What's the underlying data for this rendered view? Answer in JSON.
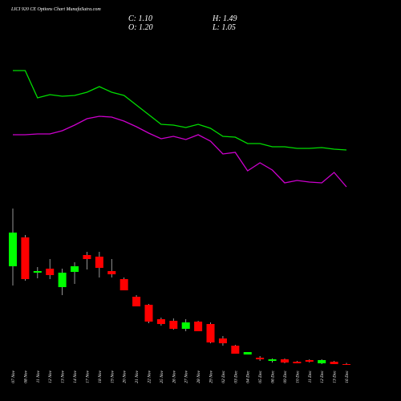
{
  "chart_data": {
    "type": "candlestick",
    "title": "LICI 920 CE Options Chart MunafaSutra.com",
    "header": [
      "C: 1.10",
      "O: 1.20",
      "H: 1.49",
      "L: 1.05"
    ],
    "categories": [
      "07 Nov",
      "08 Nov",
      "11 Nov",
      "12 Nov",
      "13 Nov",
      "14 Nov",
      "17 Nov",
      "18 Nov",
      "19 Nov",
      "20 Nov",
      "21 Nov",
      "22 Nov",
      "25 Nov",
      "26 Nov",
      "27 Nov",
      "28 Nov",
      "29 Nov",
      "02 Dec",
      "03 Dec",
      "04 Dec",
      "05 Dec",
      "06 Dec",
      "09 Dec",
      "10 Dec",
      "11 Dec",
      "12 Dec",
      "13 Dec",
      "16 Dec"
    ],
    "open": [
      25.6,
      32.8,
      24,
      25,
      20.4,
      24.2,
      28.4,
      28,
      24.4,
      22.4,
      18,
      16,
      12.4,
      12,
      10,
      11.8,
      11.2,
      7.6,
      5.8,
      3.6,
      2.8,
      2,
      2.4,
      1.8,
      2.2,
      1.4,
      1.8,
      1.2
    ],
    "high": [
      40,
      33.4,
      25.4,
      27.4,
      25,
      26.6,
      29.2,
      29.2,
      27.4,
      22.8,
      18.4,
      16.2,
      12.8,
      12.6,
      12.4,
      12,
      11.6,
      8.2,
      6,
      4.2,
      3.2,
      2.6,
      2.6,
      2,
      2.4,
      2.4,
      2,
      1.49
    ],
    "low": [
      20.8,
      22,
      22.6,
      22.4,
      18.4,
      21.2,
      24.8,
      22.8,
      22.8,
      19.6,
      15.6,
      11.4,
      10.8,
      9.8,
      9.4,
      9.4,
      6.4,
      5.8,
      3.8,
      3.6,
      2,
      1.6,
      1.4,
      1.4,
      1.6,
      1.2,
      1.2,
      1.05
    ],
    "close": [
      34,
      22.4,
      24.4,
      23.4,
      24,
      25.6,
      27.4,
      25.2,
      23.6,
      19.6,
      15.6,
      11.8,
      11.2,
      10,
      11.6,
      9.4,
      6.6,
      6.4,
      3.8,
      4.2,
      2.4,
      2.4,
      1.6,
      1.4,
      1.8,
      2.2,
      1.2,
      1.1
    ],
    "up_color": "#00ff00",
    "down_color": "#ff0000",
    "lines": [
      {
        "color": "#00dd00",
        "values": [
          74.4,
          74.4,
          67.6,
          68.4,
          68,
          68.2,
          69,
          70.4,
          69,
          68.2,
          65.8,
          63.4,
          61,
          60.8,
          60.2,
          61,
          60,
          58,
          57.8,
          56.2,
          56.2,
          55.4,
          55.4,
          55,
          55,
          55.2,
          54.8,
          54.6
        ]
      },
      {
        "color": "#cc00cc",
        "values": [
          58.4,
          58.4,
          58.6,
          58.6,
          59.4,
          60.8,
          62.4,
          63,
          62.8,
          61.8,
          60.4,
          58.8,
          57.4,
          58,
          57.2,
          58.4,
          56.8,
          53.6,
          54,
          49.4,
          51.4,
          49.6,
          46.4,
          47,
          46.6,
          46.4,
          49,
          45.4
        ]
      }
    ],
    "ylim": [
      0,
      76
    ]
  }
}
